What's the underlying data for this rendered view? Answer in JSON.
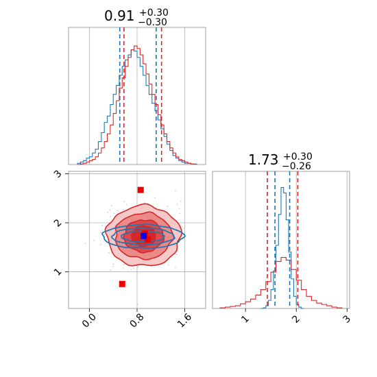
{
  "chart_data": [
    {
      "panel": "marginal-top",
      "type": "histogram",
      "parameter_index": 0,
      "title": {
        "value": "0.91",
        "upper": "+0.30",
        "lower": "−0.30"
      },
      "xlim": [
        -0.35,
        1.95
      ],
      "x_grid": [
        0.0,
        0.8,
        1.6
      ],
      "series": [
        {
          "color": "#1f77b4",
          "quantiles": [
            0.51,
            1.12
          ],
          "bins_x": [
            -0.2,
            -0.15,
            -0.1,
            -0.05,
            0.0,
            0.05,
            0.1,
            0.15,
            0.2,
            0.25,
            0.3,
            0.35,
            0.4,
            0.45,
            0.5,
            0.55,
            0.6,
            0.65,
            0.7,
            0.75,
            0.8,
            0.85,
            0.9,
            0.95,
            1.0,
            1.05,
            1.1,
            1.15,
            1.2,
            1.25,
            1.3,
            1.35,
            1.4,
            1.45,
            1.5,
            1.55,
            1.6,
            1.65,
            1.7,
            1.75,
            1.8
          ],
          "counts": [
            0.01,
            0.02,
            0.03,
            0.05,
            0.06,
            0.09,
            0.12,
            0.18,
            0.25,
            0.33,
            0.38,
            0.47,
            0.55,
            0.62,
            0.7,
            0.77,
            0.82,
            0.86,
            0.9,
            0.89,
            0.84,
            0.77,
            0.7,
            0.62,
            0.55,
            0.48,
            0.42,
            0.35,
            0.28,
            0.22,
            0.16,
            0.11,
            0.07,
            0.05,
            0.03,
            0.02,
            0.01,
            0.01,
            0.005,
            0.003
          ]
        },
        {
          "color": "#d62728",
          "quantiles": [
            0.58,
            1.21
          ],
          "bins_x": [
            -0.2,
            -0.15,
            -0.1,
            -0.05,
            0.0,
            0.05,
            0.1,
            0.15,
            0.2,
            0.25,
            0.3,
            0.35,
            0.4,
            0.45,
            0.5,
            0.55,
            0.6,
            0.65,
            0.7,
            0.75,
            0.8,
            0.85,
            0.9,
            0.95,
            1.0,
            1.05,
            1.1,
            1.15,
            1.2,
            1.25,
            1.3,
            1.35,
            1.4,
            1.45,
            1.5,
            1.55,
            1.6,
            1.65,
            1.7,
            1.75,
            1.8
          ],
          "counts": [
            0.0,
            0.005,
            0.01,
            0.02,
            0.03,
            0.04,
            0.06,
            0.09,
            0.13,
            0.18,
            0.24,
            0.31,
            0.4,
            0.5,
            0.6,
            0.68,
            0.77,
            0.84,
            0.9,
            0.93,
            0.91,
            0.86,
            0.79,
            0.71,
            0.63,
            0.55,
            0.47,
            0.39,
            0.31,
            0.24,
            0.18,
            0.13,
            0.09,
            0.06,
            0.04,
            0.03,
            0.02,
            0.01,
            0.005,
            0.003
          ]
        }
      ]
    },
    {
      "panel": "marginal-right",
      "type": "histogram",
      "parameter_index": 1,
      "title": {
        "value": "1.73",
        "upper": "+0.30",
        "lower": "−0.26"
      },
      "xlim": [
        0.35,
        3.05
      ],
      "x_ticks": [
        1,
        2,
        3
      ],
      "x_tick_labels": [
        "1",
        "2",
        "3"
      ],
      "series": [
        {
          "color": "#1f77b4",
          "quantiles": [
            1.58,
            1.87
          ],
          "bins_x": [
            1.3,
            1.35,
            1.4,
            1.45,
            1.5,
            1.55,
            1.6,
            1.65,
            1.7,
            1.75,
            1.8,
            1.85,
            1.9,
            1.95,
            2.0,
            2.05,
            2.1
          ],
          "counts": [
            0.0,
            0.005,
            0.02,
            0.06,
            0.14,
            0.28,
            0.47,
            0.7,
            0.9,
            0.86,
            0.66,
            0.42,
            0.22,
            0.09,
            0.03,
            0.01,
            0.0
          ]
        },
        {
          "color": "#d62728",
          "quantiles": [
            1.43,
            2.03
          ],
          "bins_x": [
            0.5,
            0.6,
            0.7,
            0.8,
            0.9,
            1.0,
            1.1,
            1.2,
            1.3,
            1.4,
            1.5,
            1.6,
            1.7,
            1.8,
            1.9,
            2.0,
            2.1,
            2.2,
            2.3,
            2.4,
            2.5,
            2.6,
            2.7,
            2.8
          ],
          "counts": [
            0.005,
            0.01,
            0.015,
            0.02,
            0.035,
            0.05,
            0.07,
            0.1,
            0.14,
            0.2,
            0.27,
            0.35,
            0.38,
            0.36,
            0.29,
            0.21,
            0.14,
            0.09,
            0.06,
            0.04,
            0.03,
            0.02,
            0.01,
            0.005
          ]
        }
      ]
    },
    {
      "panel": "joint",
      "type": "contour",
      "xlim": [
        -0.35,
        1.95
      ],
      "ylim": [
        0.25,
        3.05
      ],
      "x_ticks": [
        0.0,
        0.8,
        1.6
      ],
      "x_tick_labels": [
        "0.0",
        "0.8",
        "1.6"
      ],
      "y_ticks": [
        1,
        2,
        3
      ],
      "y_tick_labels": [
        "1",
        "2",
        "3"
      ],
      "red_contours": {
        "color": "#d62728",
        "center": [
          0.91,
          1.73
        ],
        "levels": [
          {
            "rx": 0.62,
            "ry": 0.62,
            "fill": "#f6c9c8"
          },
          {
            "rx": 0.48,
            "ry": 0.47,
            "fill": "#ea8b8a"
          },
          {
            "rx": 0.33,
            "ry": 0.33,
            "fill": "#dd4848"
          },
          {
            "rx": 0.2,
            "ry": 0.21,
            "fill": "#d62728"
          }
        ]
      },
      "blue_contours": {
        "color": "#1f77b4",
        "center": [
          0.9,
          1.72
        ],
        "levels": [
          {
            "rx": 0.68,
            "ry": 0.24
          },
          {
            "rx": 0.52,
            "ry": 0.17
          },
          {
            "rx": 0.36,
            "ry": 0.11
          }
        ]
      },
      "red_markers": [
        [
          0.86,
          2.67
        ],
        [
          0.55,
          0.75
        ],
        [
          0.98,
          1.66
        ],
        [
          0.93,
          1.78
        ]
      ],
      "blue_marker": [
        0.91,
        1.73
      ],
      "scatter_color": "#cccccc"
    }
  ]
}
